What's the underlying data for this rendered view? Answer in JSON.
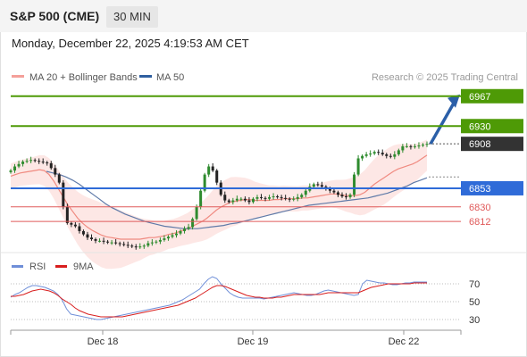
{
  "header": {
    "symbol": "S&P 500 (CME)",
    "timeframe": "30 MIN",
    "datetime": "Monday, December 22, 2025 4:19:53 AM CET"
  },
  "legend": {
    "ma20": "MA 20 + Bollinger Bands",
    "ma50": "MA 50",
    "copyright": "Research © 2025 Trading Central",
    "rsi": "RSI",
    "rsi_ma": "9MA"
  },
  "colors": {
    "resistance": "#4e9a06",
    "support": "#e05a5a",
    "pivot": "#2f6bd8",
    "ma20": "#f08a80",
    "ma50": "#5f7aa8",
    "bands": "#fde3e1",
    "candle_up": "#2e8b2e",
    "candle_down": "#222222",
    "rsi": "#6f8fd8",
    "rsi_ma": "#d81e1e",
    "arrow": "#2b5fa8"
  },
  "chart_data": {
    "type": "candlestick",
    "price_range": [
      6790,
      6980
    ],
    "x_ticks": [
      "Dec 18",
      "Dec 19",
      "Dec 22"
    ],
    "levels": [
      {
        "value": 6967,
        "label": "6967",
        "kind": "resistance"
      },
      {
        "value": 6930,
        "label": "6930",
        "kind": "resistance"
      },
      {
        "value": 6908,
        "label": "6908",
        "kind": "last"
      },
      {
        "value": 6853,
        "label": "6853",
        "kind": "pivot"
      },
      {
        "value": 6830,
        "label": "6830",
        "kind": "support"
      },
      {
        "value": 6812,
        "label": "6812",
        "kind": "support"
      }
    ],
    "close": [
      6875,
      6880,
      6883,
      6886,
      6887,
      6888,
      6887,
      6886,
      6885,
      6884,
      6878,
      6870,
      6860,
      6830,
      6810,
      6808,
      6806,
      6800,
      6796,
      6792,
      6790,
      6788,
      6788,
      6787,
      6786,
      6786,
      6785,
      6784,
      6783,
      6782,
      6781,
      6780,
      6781,
      6782,
      6785,
      6786,
      6787,
      6789,
      6791,
      6793,
      6795,
      6797,
      6800,
      6803,
      6805,
      6815,
      6830,
      6850,
      6870,
      6880,
      6875,
      6860,
      6845,
      6838,
      6836,
      6838,
      6840,
      6840,
      6838,
      6836,
      6840,
      6842,
      6841,
      6840,
      6842,
      6843,
      6842,
      6841,
      6840,
      6839,
      6840,
      6842,
      6845,
      6850,
      6855,
      6858,
      6857,
      6855,
      6852,
      6850,
      6848,
      6845,
      6843,
      6842,
      6845,
      6870,
      6890,
      6893,
      6895,
      6896,
      6898,
      6897,
      6895,
      6893,
      6892,
      6895,
      6900,
      6905,
      6905,
      6904,
      6905,
      6906,
      6907,
      6908
    ],
    "ma20": [
      6868,
      6870,
      6872,
      6873,
      6874,
      6875,
      6876,
      6875,
      6870,
      6862,
      6852,
      6842,
      6832,
      6824,
      6816,
      6810,
      6805,
      6801,
      6798,
      6795,
      6793,
      6792,
      6791,
      6790,
      6790,
      6790,
      6790,
      6790,
      6791,
      6792,
      6792,
      6793,
      6794,
      6796,
      6797,
      6799,
      6801,
      6803,
      6806,
      6809,
      6812,
      6816,
      6821,
      6826,
      6830,
      6833,
      6836,
      6837,
      6838,
      6839,
      6839,
      6838,
      6838,
      6838,
      6838,
      6839,
      6839,
      6840,
      6840,
      6840,
      6840,
      6841,
      6841,
      6842,
      6843,
      6844,
      6845,
      6846,
      6846,
      6845,
      6844,
      6844,
      6844,
      6845,
      6848,
      6853,
      6858,
      6862,
      6866,
      6870,
      6874,
      6877,
      6879,
      6881,
      6883,
      6886,
      6890,
      6894
    ],
    "ma50": [
      6874,
      6872,
      6870,
      6867,
      6863,
      6858,
      6852,
      6846,
      6840,
      6834,
      6829,
      6825,
      6821,
      6818,
      6815,
      6812,
      6810,
      6808,
      6806,
      6805,
      6804,
      6803,
      6803,
      6803,
      6804,
      6805,
      6806,
      6807,
      6809,
      6810,
      6812,
      6814,
      6816,
      6818,
      6820,
      6822,
      6824,
      6826,
      6828,
      6830,
      6832,
      6833,
      6834,
      6835,
      6836,
      6837,
      6838,
      6839,
      6840,
      6841,
      6843,
      6845,
      6847,
      6850,
      6853,
      6856,
      6860,
      6863,
      6866
    ],
    "rsi": [
      55,
      58,
      60,
      63,
      66,
      68,
      68,
      67,
      66,
      64,
      62,
      58,
      52,
      42,
      36,
      35,
      34,
      33,
      32,
      31,
      30,
      30,
      31,
      32,
      33,
      34,
      35,
      36,
      37,
      38,
      39,
      40,
      41,
      42,
      43,
      44,
      45,
      46,
      48,
      50,
      52,
      55,
      58,
      61,
      64,
      70,
      75,
      78,
      76,
      70,
      65,
      60,
      57,
      55,
      54,
      54,
      54,
      54,
      54,
      53,
      54,
      55,
      56,
      57,
      58,
      59,
      60,
      59,
      58,
      57,
      57,
      58,
      60,
      62,
      63,
      62,
      61,
      60,
      59,
      58,
      57,
      58,
      70,
      74,
      73,
      72,
      71,
      71,
      70,
      69,
      69,
      70,
      71,
      71,
      72,
      72,
      72,
      72
    ],
    "rsi_ma": [
      56,
      56,
      57,
      58,
      60,
      62,
      63,
      64,
      63,
      62,
      60,
      57,
      53,
      50,
      47,
      43,
      40,
      38,
      36,
      35,
      34,
      33,
      33,
      33,
      33,
      33,
      33,
      34,
      35,
      36,
      37,
      38,
      39,
      40,
      41,
      42,
      43,
      44,
      45,
      46,
      48,
      50,
      52,
      54,
      57,
      60,
      63,
      66,
      68,
      68,
      67,
      65,
      63,
      61,
      59,
      57,
      56,
      55,
      55,
      54,
      54,
      54,
      55,
      55,
      56,
      57,
      58,
      58,
      58,
      58,
      58,
      58,
      58,
      59,
      60,
      60,
      60,
      60,
      60,
      60,
      60,
      60,
      62,
      64,
      66,
      67,
      68,
      69,
      70,
      70,
      70,
      70,
      70,
      70,
      71,
      71,
      71,
      71
    ],
    "rsi_ticks": [
      "70",
      "50",
      "30"
    ]
  }
}
